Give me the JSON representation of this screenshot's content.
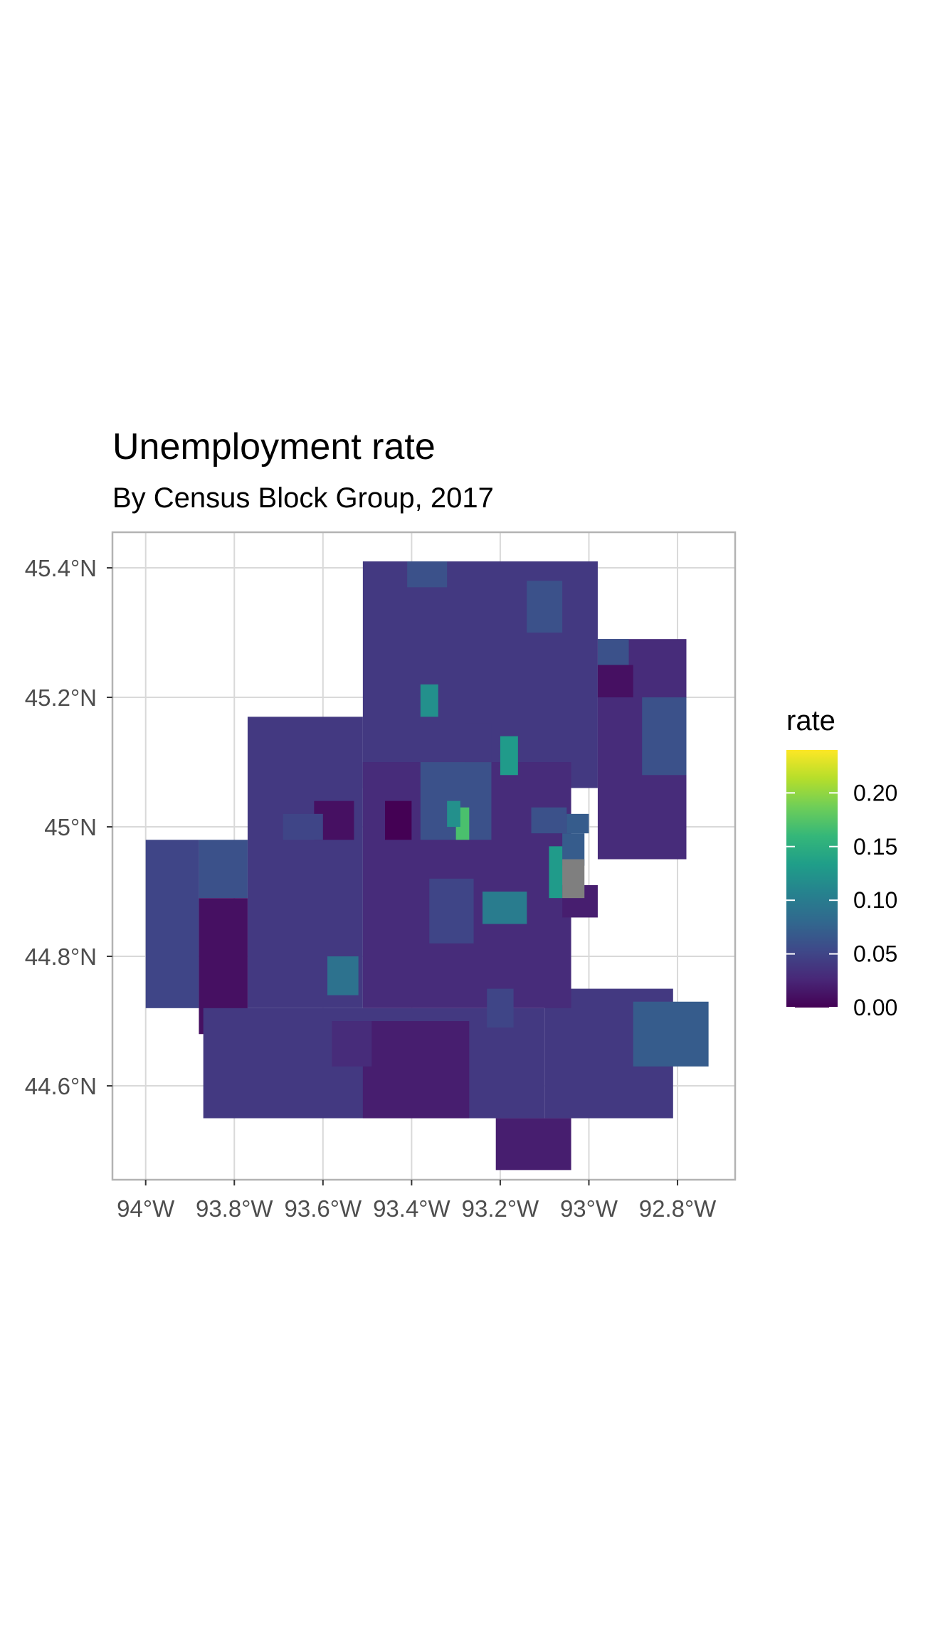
{
  "title": "Unemployment rate",
  "subtitle": "By Census Block Group, 2017",
  "axes": {
    "x_ticks": [
      {
        "value": -94.0,
        "label": "94°W"
      },
      {
        "value": -93.8,
        "label": "93.8°W"
      },
      {
        "value": -93.6,
        "label": "93.6°W"
      },
      {
        "value": -93.4,
        "label": "93.4°W"
      },
      {
        "value": -93.2,
        "label": "93.2°W"
      },
      {
        "value": -93.0,
        "label": "93°W"
      },
      {
        "value": -92.8,
        "label": "92.8°W"
      }
    ],
    "y_ticks": [
      {
        "value": 45.4,
        "label": "45.4°N"
      },
      {
        "value": 45.2,
        "label": "45.2°N"
      },
      {
        "value": 45.0,
        "label": "45°N"
      },
      {
        "value": 44.8,
        "label": "44.8°N"
      },
      {
        "value": 44.6,
        "label": "44.6°N"
      }
    ],
    "lon_range": [
      -94.075,
      -92.67
    ],
    "lat_range": [
      44.455,
      45.455
    ]
  },
  "legend": {
    "title": "rate",
    "colorscale": "viridis",
    "range": [
      0,
      0.24
    ],
    "ticks": [
      {
        "value": 0.0,
        "label": "0.00"
      },
      {
        "value": 0.05,
        "label": "0.05"
      },
      {
        "value": 0.1,
        "label": "0.10"
      },
      {
        "value": 0.15,
        "label": "0.15"
      },
      {
        "value": 0.2,
        "label": "0.20"
      }
    ]
  },
  "colors": {
    "viridis": [
      "#440154",
      "#482878",
      "#3e4989",
      "#31688e",
      "#26828e",
      "#1f9e89",
      "#35b779",
      "#6ece58",
      "#b5de2b",
      "#fde725"
    ],
    "missing": "#7f7f7f"
  },
  "chart_data": {
    "type": "choropleth",
    "value_field": "rate",
    "regions": [
      {
        "lon": [
          -93.51,
          -92.98
        ],
        "lat": [
          45.06,
          45.41
        ],
        "rate": 0.04
      },
      {
        "lon": [
          -93.41,
          -93.32
        ],
        "lat": [
          45.37,
          45.41
        ],
        "rate": 0.06
      },
      {
        "lon": [
          -93.14,
          -93.06
        ],
        "lat": [
          45.3,
          45.38
        ],
        "rate": 0.06
      },
      {
        "lon": [
          -92.98,
          -92.78
        ],
        "lat": [
          44.95,
          45.29
        ],
        "rate": 0.03
      },
      {
        "lon": [
          -92.98,
          -92.91
        ],
        "lat": [
          45.25,
          45.29
        ],
        "rate": 0.06
      },
      {
        "lon": [
          -92.98,
          -92.9
        ],
        "lat": [
          45.2,
          45.25
        ],
        "rate": 0.01
      },
      {
        "lon": [
          -92.88,
          -92.78
        ],
        "lat": [
          45.08,
          45.2
        ],
        "rate": 0.06
      },
      {
        "lon": [
          -93.77,
          -93.51
        ],
        "lat": [
          44.72,
          45.17
        ],
        "rate": 0.04
      },
      {
        "lon": [
          -93.62,
          -93.53
        ],
        "lat": [
          44.98,
          45.04
        ],
        "rate": 0.01
      },
      {
        "lon": [
          -94.0,
          -93.88
        ],
        "lat": [
          44.72,
          44.98
        ],
        "rate": 0.05
      },
      {
        "lon": [
          -93.88,
          -93.77
        ],
        "lat": [
          44.89,
          44.98
        ],
        "rate": 0.06
      },
      {
        "lon": [
          -93.88,
          -93.77
        ],
        "lat": [
          44.68,
          44.89
        ],
        "rate": 0.01
      },
      {
        "lon": [
          -93.87,
          -93.1
        ],
        "lat": [
          44.55,
          44.72
        ],
        "rate": 0.04
      },
      {
        "lon": [
          -93.51,
          -93.27
        ],
        "lat": [
          44.55,
          44.7
        ],
        "rate": 0.02
      },
      {
        "lon": [
          -93.21,
          -93.04
        ],
        "lat": [
          44.47,
          44.55
        ],
        "rate": 0.02
      },
      {
        "lon": [
          -93.1,
          -92.81
        ],
        "lat": [
          44.55,
          44.75
        ],
        "rate": 0.04
      },
      {
        "lon": [
          -92.9,
          -92.73
        ],
        "lat": [
          44.63,
          44.73
        ],
        "rate": 0.07
      },
      {
        "lon": [
          -93.51,
          -93.04
        ],
        "lat": [
          44.72,
          45.1
        ],
        "rate": 0.03
      },
      {
        "lon": [
          -93.38,
          -93.22
        ],
        "lat": [
          44.98,
          45.1
        ],
        "rate": 0.06
      },
      {
        "lon": [
          -93.3,
          -93.27
        ],
        "lat": [
          44.98,
          45.03
        ],
        "rate": 0.17
      },
      {
        "lon": [
          -93.32,
          -93.29
        ],
        "lat": [
          45.0,
          45.04
        ],
        "rate": 0.12
      },
      {
        "lon": [
          -93.2,
          -93.16
        ],
        "lat": [
          45.08,
          45.14
        ],
        "rate": 0.13
      },
      {
        "lon": [
          -93.38,
          -93.34
        ],
        "lat": [
          45.17,
          45.22
        ],
        "rate": 0.12
      },
      {
        "lon": [
          -93.24,
          -93.14
        ],
        "lat": [
          44.85,
          44.9
        ],
        "rate": 0.1
      },
      {
        "lon": [
          -93.09,
          -93.03
        ],
        "lat": [
          44.89,
          44.97
        ],
        "rate": 0.13
      },
      {
        "lon": [
          -93.06,
          -93.01
        ],
        "lat": [
          44.94,
          44.99
        ],
        "rate": 0.07
      },
      {
        "lon": [
          -93.59,
          -93.52
        ],
        "lat": [
          44.74,
          44.8
        ],
        "rate": 0.09
      },
      {
        "lon": [
          -93.36,
          -93.26
        ],
        "lat": [
          44.82,
          44.92
        ],
        "rate": 0.05
      },
      {
        "lon": [
          -93.13,
          -93.05
        ],
        "lat": [
          44.99,
          45.03
        ],
        "rate": 0.06
      },
      {
        "lon": [
          -93.05,
          -93.0
        ],
        "lat": [
          44.99,
          45.02
        ],
        "rate": 0.07
      },
      {
        "lon": [
          -93.69,
          -93.6
        ],
        "lat": [
          44.98,
          45.02
        ],
        "rate": 0.05
      },
      {
        "lon": [
          -93.58,
          -93.49
        ],
        "lat": [
          44.63,
          44.7
        ],
        "rate": 0.03
      },
      {
        "lon": [
          -93.23,
          -93.17
        ],
        "lat": [
          44.69,
          44.75
        ],
        "rate": 0.05
      },
      {
        "lon": [
          -93.46,
          -93.4
        ],
        "lat": [
          44.98,
          45.04
        ],
        "rate": 0.0
      },
      {
        "lon": [
          -93.06,
          -92.98
        ],
        "lat": [
          44.86,
          44.91
        ],
        "rate": 0.02
      },
      {
        "lon": [
          -93.28,
          -93.22
        ],
        "lat": [
          45.1,
          45.16
        ],
        "rate": 0.04
      }
    ],
    "missing_regions": [
      {
        "lon": [
          -93.06,
          -93.01
        ],
        "lat": [
          44.89,
          44.95
        ]
      }
    ]
  }
}
